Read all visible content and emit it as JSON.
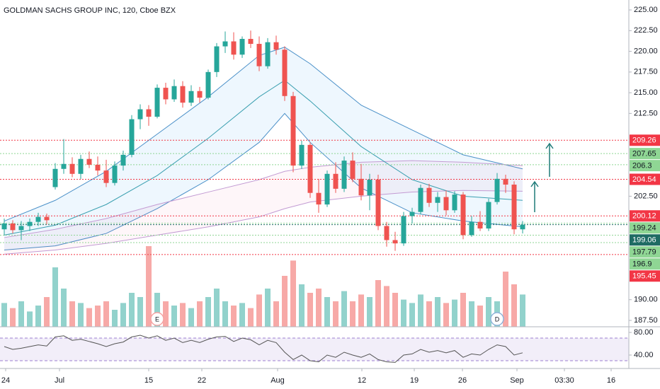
{
  "chart_data": {
    "type": "candlestick",
    "title": "GOLDMAN SACHS GROUP INC, 120, Cboe BZX",
    "up_color": "#26a69a",
    "down_color": "#ef5350",
    "ylim": [
      186.73,
      226.2
    ],
    "yticks": [
      {
        "value": 225,
        "label": "225.00"
      },
      {
        "value": 222.5,
        "label": "222.50"
      },
      {
        "value": 220,
        "label": "220.00"
      },
      {
        "value": 217.5,
        "label": "217.50"
      },
      {
        "value": 215,
        "label": "215.00"
      },
      {
        "value": 212.5,
        "label": "212.50"
      },
      {
        "value": 202.5,
        "label": "202.50"
      },
      {
        "value": 190,
        "label": "190.00"
      },
      {
        "value": 187.5,
        "label": "187.50"
      }
    ],
    "xticks": [
      "24",
      "Jul",
      "15",
      "22",
      "Aug",
      "12",
      "19",
      "26",
      "Sep",
      "03:30",
      "16"
    ],
    "open": [
      198.5,
      199.2,
      198.4,
      198.9,
      199.4,
      200.0,
      203.6,
      205.8,
      206.4,
      205.2,
      207.0,
      206.3,
      205.6,
      204.1,
      206.2,
      207.5,
      211.8,
      213.0,
      212.1,
      215.6,
      214.2,
      215.8,
      213.8,
      215.2,
      214.4,
      217.5,
      220.6,
      221.2,
      219.6,
      221.5,
      220.9,
      218.2,
      221.1,
      220.2,
      214.6,
      206.2,
      208.7,
      202.9,
      201.5,
      205.2,
      203.4,
      206.8,
      204.6,
      202.6,
      204.5,
      198.9,
      197.2,
      196.8,
      200.1,
      200.6,
      203.5,
      201.7,
      202.4,
      200.8,
      202.7,
      197.8,
      199.4,
      198.6,
      201.8,
      204.6,
      203.9,
      198.5
    ],
    "high": [
      199.8,
      199.6,
      199.5,
      199.8,
      200.5,
      200.4,
      206.5,
      209.4,
      207.2,
      207.5,
      207.9,
      207.3,
      206.9,
      206.7,
      208.0,
      212.3,
      213.6,
      213.5,
      216.0,
      216.2,
      216.6,
      216.4,
      215.9,
      215.7,
      217.8,
      221.0,
      222.4,
      222.3,
      221.8,
      222.5,
      221.8,
      221.6,
      221.9,
      220.6,
      215.1,
      209.2,
      209.0,
      204.6,
      205.6,
      206.6,
      207.3,
      207.8,
      206.4,
      205.2,
      205.1,
      199.4,
      198.2,
      200.6,
      201.1,
      203.9,
      204.0,
      203.0,
      203.2,
      203.1,
      203.0,
      200.1,
      200.7,
      202.2,
      205.3,
      205.1,
      204.3,
      199.5
    ],
    "low": [
      197.8,
      198.0,
      197.2,
      198.3,
      198.9,
      199.1,
      203.3,
      205.2,
      204.8,
      204.6,
      205.9,
      205.0,
      203.6,
      203.8,
      205.6,
      207.2,
      210.6,
      211.0,
      211.9,
      213.6,
      213.9,
      213.2,
      213.4,
      213.8,
      214.2,
      216.9,
      219.8,
      219.0,
      219.2,
      220.4,
      217.6,
      217.9,
      219.6,
      214.0,
      205.4,
      205.8,
      202.3,
      200.5,
      201.2,
      202.9,
      203.0,
      204.2,
      202.0,
      200.8,
      198.4,
      196.4,
      195.9,
      196.5,
      199.2,
      200.3,
      201.2,
      200.6,
      200.2,
      200.5,
      197.3,
      197.6,
      198.3,
      198.3,
      201.5,
      202.9,
      197.9,
      198.0
    ],
    "close": [
      199.2,
      198.4,
      198.9,
      199.4,
      200.0,
      199.6,
      205.8,
      206.4,
      205.2,
      207.0,
      206.3,
      205.6,
      204.1,
      206.2,
      207.5,
      211.8,
      213.0,
      212.1,
      215.6,
      214.2,
      215.8,
      213.8,
      215.2,
      214.4,
      217.5,
      220.6,
      221.2,
      219.6,
      221.5,
      220.9,
      218.2,
      221.1,
      220.2,
      214.6,
      206.2,
      208.7,
      202.9,
      201.5,
      205.2,
      203.4,
      206.8,
      204.6,
      202.6,
      204.5,
      198.9,
      197.2,
      196.8,
      200.1,
      200.6,
      203.5,
      201.7,
      202.4,
      200.8,
      202.7,
      197.8,
      199.4,
      198.6,
      201.8,
      204.6,
      203.9,
      198.5,
      199.06
    ],
    "volume": [
      28,
      22,
      30,
      18,
      25,
      35,
      70,
      45,
      30,
      28,
      22,
      25,
      30,
      20,
      28,
      40,
      35,
      95,
      40,
      30,
      25,
      28,
      22,
      30,
      35,
      45,
      30,
      25,
      28,
      22,
      38,
      45,
      30,
      60,
      78,
      50,
      40,
      45,
      35,
      30,
      42,
      30,
      38,
      35,
      55,
      48,
      40,
      32,
      28,
      38,
      30,
      35,
      28,
      32,
      40,
      30,
      25,
      35,
      30,
      65,
      50,
      38
    ],
    "vlim": [
      0,
      100
    ],
    "indicators": {
      "x": [
        0,
        6,
        12,
        18,
        24,
        30,
        33,
        36,
        42,
        48,
        54,
        61
      ],
      "bands": [
        {
          "color": "#4a90c8",
          "fill": "rgba(33,150,243,0.08)",
          "upper": [
            199.5,
            202,
            205.5,
            210,
            214.5,
            219.5,
            220.5,
            218.5,
            213.5,
            210.5,
            207.5,
            205.8
          ],
          "lower": [
            196,
            196.5,
            198,
            201,
            204.5,
            209,
            212.5,
            209,
            203.5,
            200.5,
            199.5,
            198.8
          ]
        },
        {
          "color": "#c39bd3",
          "fill": "rgba(233,30,99,0.04)",
          "upper": [
            197.5,
            198.5,
            199.8,
            201.5,
            203,
            204.5,
            205.5,
            206,
            206.6,
            206.8,
            206.6,
            206.2
          ],
          "lower": [
            195.5,
            196,
            196.8,
            197.8,
            198.8,
            200,
            201,
            201.8,
            202.5,
            203,
            203.2,
            203.1
          ]
        }
      ],
      "lines": [
        {
          "color": "#3a9fb0",
          "values": [
            197.8,
            199,
            201.5,
            205,
            209.5,
            214.5,
            216.5,
            214,
            208.5,
            204.5,
            202.5,
            202
          ]
        }
      ]
    },
    "levels": [
      {
        "value": 209.26,
        "color": "#f23645",
        "label_color": "#ffffff"
      },
      {
        "value": 207.65,
        "color": "#8fd694",
        "label_color": "#131722"
      },
      {
        "value": 206.3,
        "color": "#8fd694",
        "label_color": "#131722"
      },
      {
        "value": 204.54,
        "color": "#f23645",
        "label_color": "#ffffff"
      },
      {
        "value": 200.12,
        "color": "#f23645",
        "label_color": "#ffffff"
      },
      {
        "value": 199.24,
        "color": "#8fd694",
        "label_color": "#131722"
      },
      {
        "value": 199.06,
        "color": "#1e6b63",
        "label_color": "#ffffff"
      },
      {
        "value": 197.79,
        "color": "#8fd694",
        "label_color": "#131722"
      },
      {
        "value": 196.9,
        "color": "#8fd694",
        "label_color": "#131722"
      },
      {
        "value": 195.45,
        "color": "#f23645",
        "label_color": "#ffffff"
      }
    ],
    "events": [
      {
        "label": "E",
        "index": 18,
        "color": "#f5a3a3"
      },
      {
        "label": "D",
        "index": 58,
        "color": "#8fb3d9"
      }
    ],
    "rsi": {
      "color": "#555555",
      "values": [
        55,
        50,
        52,
        55,
        58,
        56,
        72,
        74,
        66,
        68,
        64,
        60,
        55,
        60,
        63,
        72,
        75,
        70,
        74,
        66,
        70,
        62,
        66,
        62,
        68,
        72,
        73,
        64,
        70,
        67,
        58,
        66,
        62,
        45,
        32,
        40,
        30,
        28,
        40,
        36,
        45,
        40,
        36,
        42,
        32,
        28,
        27,
        40,
        42,
        50,
        45,
        48,
        44,
        48,
        36,
        42,
        40,
        50,
        58,
        55,
        40,
        44
      ],
      "ylim": [
        20,
        90
      ],
      "yticks": [
        {
          "value": 80,
          "label": "80.00"
        },
        {
          "value": 40,
          "label": "40.00"
        }
      ]
    }
  }
}
